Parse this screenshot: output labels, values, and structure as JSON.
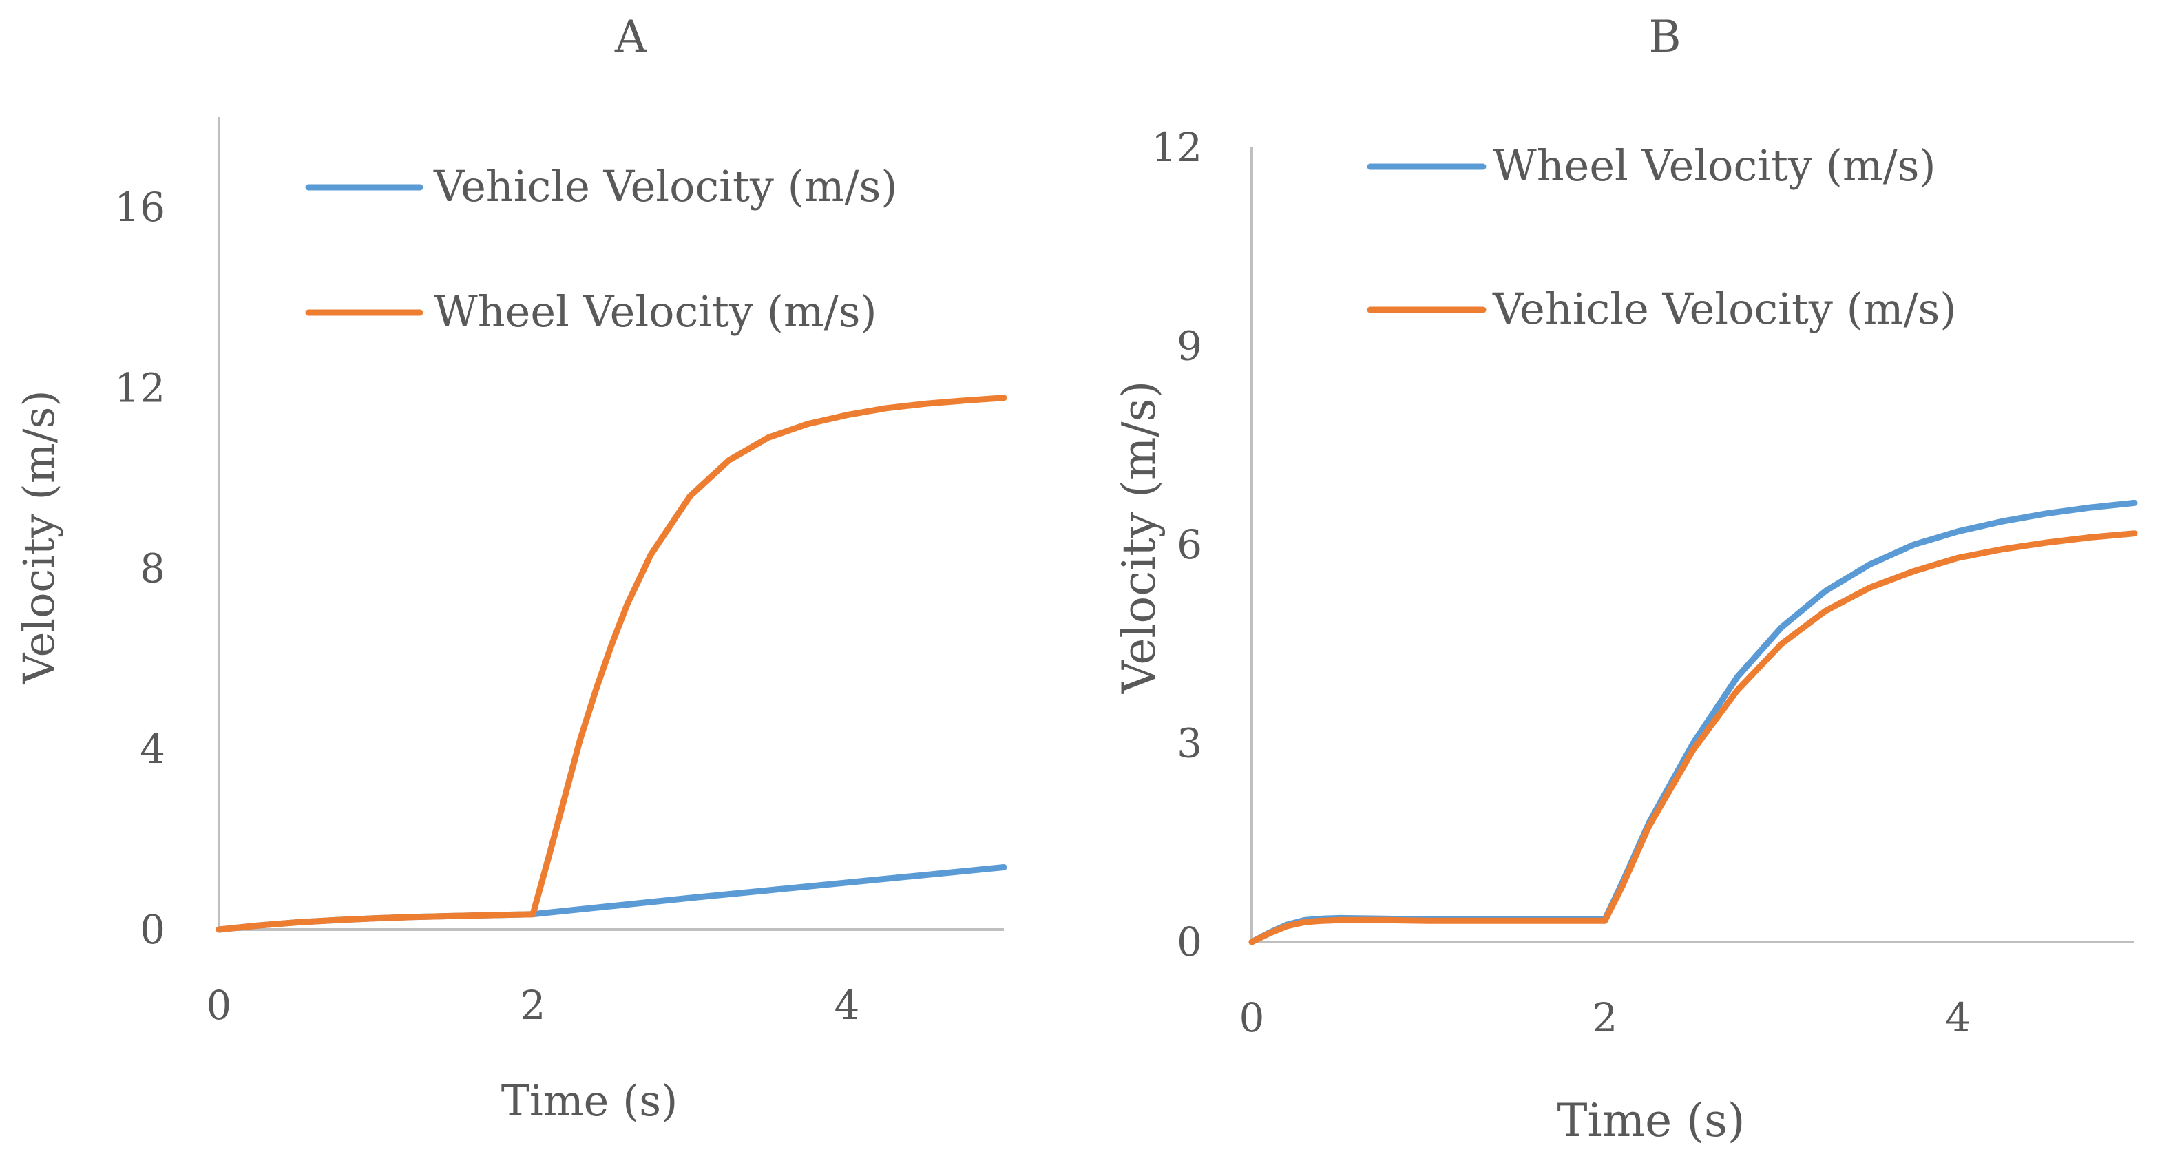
{
  "chart_data": [
    {
      "type": "line",
      "title": "A",
      "xlabel": "Time (s)",
      "ylabel": "Velocity (m/s)",
      "xlim": [
        0,
        5
      ],
      "ylim": [
        0,
        18
      ],
      "x_ticks": [
        0,
        2,
        4
      ],
      "y_ticks": [
        0,
        4,
        8,
        12,
        16
      ],
      "grid": false,
      "legend": "top",
      "series": [
        {
          "name": "Vehicle Velocity (m/s)",
          "color": "#5B9BD5",
          "x": [
            0,
            0.25,
            0.5,
            0.75,
            1.0,
            1.25,
            1.5,
            1.75,
            2.0,
            2.5,
            3.0,
            3.5,
            4.0,
            4.5,
            5.0
          ],
          "y": [
            0,
            0.09,
            0.16,
            0.21,
            0.25,
            0.28,
            0.3,
            0.32,
            0.34,
            0.52,
            0.7,
            0.87,
            1.04,
            1.21,
            1.38
          ]
        },
        {
          "name": "Wheel Velocity (m/s)",
          "color": "#ED7D31",
          "x": [
            0,
            0.25,
            0.5,
            0.75,
            1.0,
            1.25,
            1.5,
            1.75,
            2.0,
            2.1,
            2.2,
            2.3,
            2.4,
            2.5,
            2.6,
            2.75,
            3.0,
            3.25,
            3.5,
            3.75,
            4.0,
            4.25,
            4.5,
            4.75,
            5.0
          ],
          "y": [
            0,
            0.09,
            0.16,
            0.21,
            0.25,
            0.28,
            0.3,
            0.32,
            0.34,
            1.6,
            2.9,
            4.2,
            5.3,
            6.3,
            7.2,
            8.3,
            9.6,
            10.4,
            10.9,
            11.2,
            11.4,
            11.55,
            11.65,
            11.72,
            11.78
          ]
        }
      ]
    },
    {
      "type": "line",
      "title": "B",
      "xlabel": "Time (s)",
      "ylabel": "Velocity (m/s)",
      "xlim": [
        0,
        5
      ],
      "ylim": [
        0,
        12
      ],
      "x_ticks": [
        0,
        2,
        4
      ],
      "y_ticks": [
        0,
        3,
        6,
        9,
        12
      ],
      "grid": false,
      "legend": "top",
      "series": [
        {
          "name": "Wheel Velocity (m/s)",
          "color": "#5B9BD5",
          "x": [
            0,
            0.1,
            0.2,
            0.3,
            0.4,
            0.5,
            0.75,
            1.0,
            1.5,
            2.0,
            2.1,
            2.25,
            2.5,
            2.75,
            3.0,
            3.25,
            3.5,
            3.75,
            4.0,
            4.25,
            4.5,
            4.75,
            5.0
          ],
          "y": [
            0,
            0.14,
            0.26,
            0.33,
            0.35,
            0.36,
            0.35,
            0.34,
            0.34,
            0.34,
            0.9,
            1.8,
            3.0,
            4.0,
            4.75,
            5.3,
            5.7,
            6.0,
            6.2,
            6.35,
            6.47,
            6.56,
            6.63
          ]
        },
        {
          "name": "Vehicle Velocity (m/s)",
          "color": "#ED7D31",
          "x": [
            0,
            0.1,
            0.2,
            0.3,
            0.4,
            0.5,
            0.75,
            1.0,
            1.5,
            2.0,
            2.1,
            2.25,
            2.5,
            2.75,
            3.0,
            3.25,
            3.5,
            3.75,
            4.0,
            4.25,
            4.5,
            4.75,
            5.0
          ],
          "y": [
            0,
            0.13,
            0.24,
            0.3,
            0.32,
            0.33,
            0.33,
            0.32,
            0.32,
            0.32,
            0.85,
            1.75,
            2.9,
            3.8,
            4.5,
            5.0,
            5.35,
            5.6,
            5.8,
            5.93,
            6.03,
            6.11,
            6.17
          ]
        }
      ]
    }
  ]
}
